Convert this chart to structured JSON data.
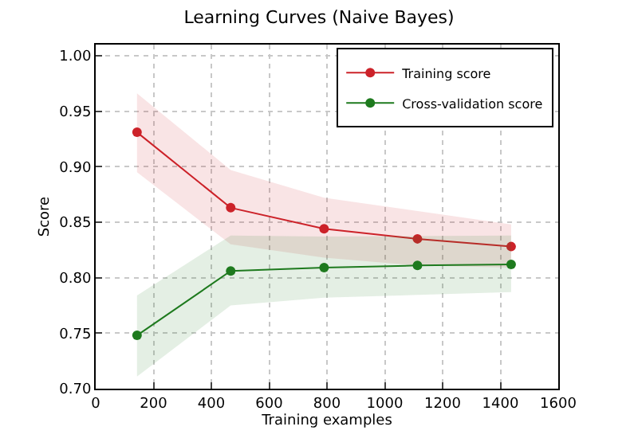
{
  "chart_data": {
    "type": "line",
    "title": "Learning Curves (Naive Bayes)",
    "xlabel": "Training examples",
    "ylabel": "Score",
    "x": [
      143,
      467,
      790,
      1113,
      1437
    ],
    "series": [
      {
        "name": "Training score",
        "color": "#cc2229",
        "values": [
          0.931,
          0.863,
          0.844,
          0.835,
          0.828
        ],
        "lower": [
          0.895,
          0.83,
          0.818,
          0.811,
          0.809
        ],
        "upper": [
          0.966,
          0.897,
          0.872,
          0.86,
          0.848
        ]
      },
      {
        "name": "Cross-validation score",
        "color": "#1e7a1e",
        "values": [
          0.748,
          0.806,
          0.809,
          0.811,
          0.812
        ],
        "lower": [
          0.711,
          0.775,
          0.782,
          0.785,
          0.787
        ],
        "upper": [
          0.784,
          0.838,
          0.837,
          0.837,
          0.838
        ]
      }
    ],
    "xlim": [
      0,
      1600
    ],
    "xticks": [
      0,
      200,
      400,
      600,
      800,
      1000,
      1200,
      1400,
      1600
    ],
    "ylim": [
      0.7,
      1.01
    ],
    "yticks": [
      {
        "value": 0.7,
        "label": "0.70"
      },
      {
        "value": 0.75,
        "label": "0.75"
      },
      {
        "value": 0.8,
        "label": "0.80"
      },
      {
        "value": 0.85,
        "label": "0.85"
      },
      {
        "value": 0.9,
        "label": "0.90"
      },
      {
        "value": 0.95,
        "label": "0.95"
      },
      {
        "value": 1.0,
        "label": "1.00"
      }
    ],
    "grid": true,
    "legend": "top right",
    "marker": "circle",
    "line_style": "solid"
  }
}
